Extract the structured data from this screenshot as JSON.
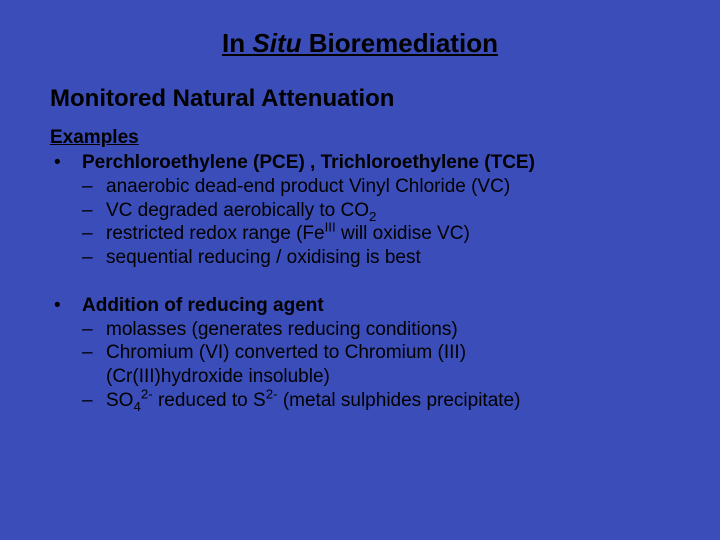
{
  "colors": {
    "background": "#3b4db8",
    "text": "#000000"
  },
  "typography": {
    "family": "Arial",
    "title_size_pt": 26,
    "subtitle_size_pt": 24,
    "body_size_pt": 19
  },
  "title_pre": "In ",
  "title_situ": "Situ",
  "title_post": " Bioremediation",
  "subtitle": "Monitored Natural Attenuation",
  "examples_label": "Examples",
  "block1": {
    "heading": "Perchloroethylene (PCE) , Trichloroethylene (TCE)",
    "items": [
      {
        "text": "anaerobic dead-end product Vinyl Chloride (VC)"
      },
      {
        "pre": "VC degraded aerobically to CO",
        "sub": "2"
      },
      {
        "pre": "restricted redox range (Fe",
        "sup": "III",
        "post": "  will oxidise VC)"
      },
      {
        "text": "sequential reducing / oxidising is best"
      }
    ]
  },
  "block2": {
    "heading": "Addition of reducing agent",
    "items": [
      {
        "text": "molasses (generates reducing conditions)"
      },
      {
        "line1": "Chromium (VI) converted to Chromium (III)",
        "line2": "(Cr(III)hydroxide insoluble)"
      },
      {
        "pre": "SO",
        "sub1": "4",
        "sup1": "2-",
        "mid": " reduced to S",
        "sup2": "2-",
        "post": " (metal sulphides precipitate)"
      }
    ]
  },
  "bullet_mark": "•",
  "dash_mark": "–"
}
